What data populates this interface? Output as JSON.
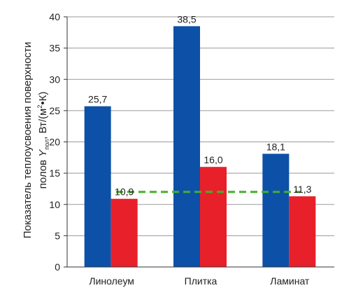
{
  "chart_data": {
    "type": "bar",
    "categories": [
      "Линолеум",
      "Плитка",
      "Ламинат"
    ],
    "series": [
      {
        "values": [
          25.7,
          38.5,
          18.1
        ],
        "labels": [
          "25,7",
          "38,5",
          "18,1"
        ],
        "color": "#0d50a8"
      },
      {
        "values": [
          10.9,
          16.0,
          11.3
        ],
        "labels": [
          "10,9",
          "16,0",
          "11,3"
        ],
        "color": "#e8202a"
      }
    ],
    "reference_line": {
      "value": 12,
      "color": "#43b02a",
      "style": "dashed"
    },
    "ylim": [
      0,
      40
    ],
    "yticks": [
      0,
      5,
      10,
      15,
      20,
      25,
      30,
      35,
      40
    ],
    "ylabel": {
      "line1": "Показатель теплоусвоения поверхности",
      "line2_prefix": "полов ",
      "symbol": "Y",
      "symbol_sub": "пол",
      "unit_prefix": ", Вт/(м",
      "unit_sup": "2",
      "unit_suffix": "•К)"
    },
    "grid": true,
    "legend": "none"
  }
}
